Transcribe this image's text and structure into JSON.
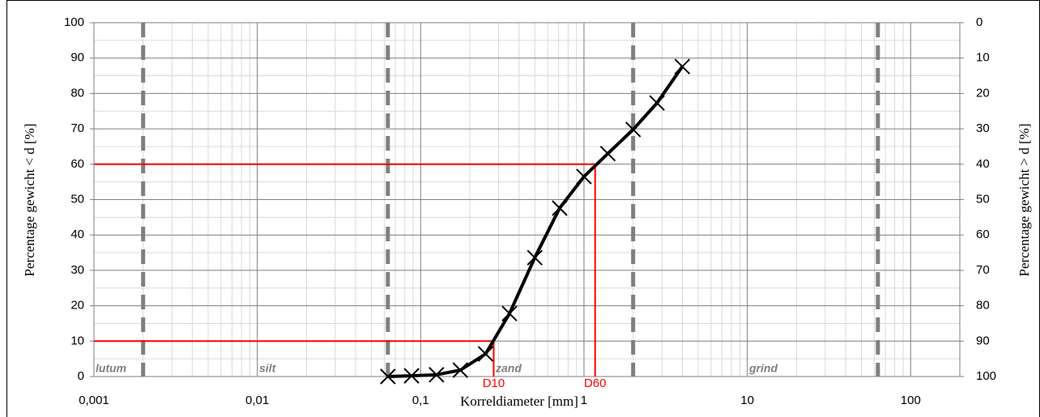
{
  "chart_data": {
    "type": "line",
    "x_label": "Korreldiameter [mm]",
    "y_label": "Percentage gewicht < d [%]",
    "y2_label": "Percentage gewicht > d [%]",
    "log_x": true,
    "grid": true,
    "xlim": [
      0.001,
      200
    ],
    "xticks": [
      {
        "value": 0.001,
        "label": "0,001"
      },
      {
        "value": 0.01,
        "label": "0,01"
      },
      {
        "value": 0.1,
        "label": "0,1"
      },
      1,
      10,
      100
    ],
    "ylim": [
      0,
      100
    ],
    "yticks": [
      0,
      10,
      20,
      30,
      40,
      50,
      60,
      70,
      80,
      90,
      100
    ],
    "y2lim": [
      100,
      0
    ],
    "y2ticks": [
      0,
      10,
      20,
      30,
      40,
      50,
      60,
      70,
      80,
      90,
      100
    ],
    "series": [
      {
        "color": "#000000",
        "x": [
          0.063,
          0.088,
          0.125,
          0.175,
          0.25,
          0.35,
          0.5,
          0.71,
          1.0,
          1.4,
          2.0,
          2.8,
          4.0
        ],
        "values": [
          0,
          0.2,
          0.5,
          1.8,
          6.4,
          17.8,
          33.6,
          47.6,
          56.5,
          63,
          69.8,
          77.3,
          87.6
        ]
      }
    ],
    "reference_lines": [
      {
        "label": "D10",
        "x": 0.28,
        "y": 10
      },
      {
        "label": "D60",
        "x": 1.17,
        "y": 60
      }
    ],
    "reference_color": "#ff0000",
    "zone_boundaries": [
      0.002,
      0.063,
      2,
      63
    ],
    "zones": [
      "lutum",
      "silt",
      "zand",
      "grind"
    ]
  }
}
